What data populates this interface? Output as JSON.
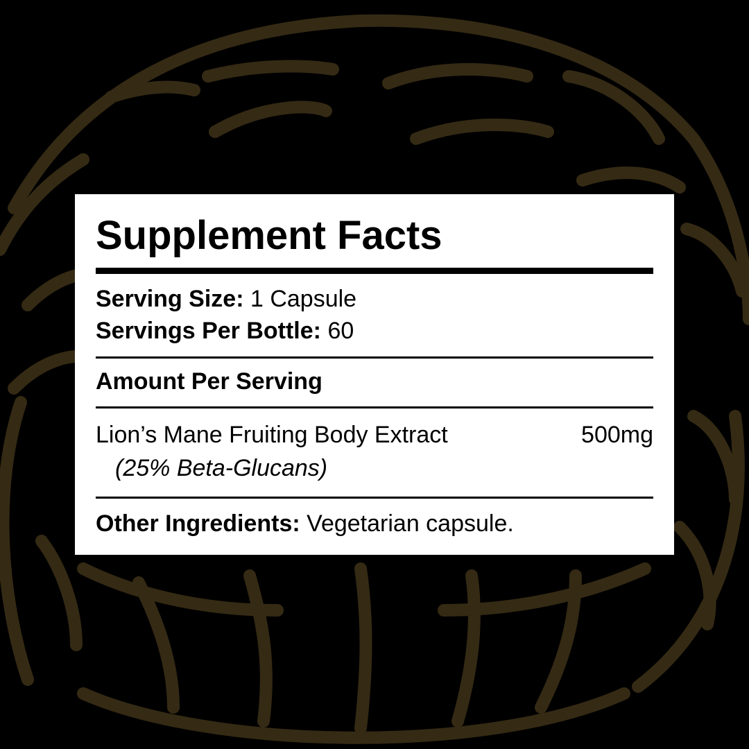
{
  "colors": {
    "background": "#000000",
    "illustration": "#352a14",
    "panel": "#ffffff"
  },
  "illustration": "lions-mane-mushroom-line-art",
  "label": {
    "title": "Supplement Facts",
    "serving_size_label": "Serving Size:",
    "serving_size_value": "1 Capsule",
    "servings_per_bottle_label": "Servings Per Bottle:",
    "servings_per_bottle_value": "60",
    "amount_per_serving": "Amount Per Serving",
    "ingredients": [
      {
        "name": "Lion’s Mane Fruiting Body Extract",
        "amount": "500mg",
        "note": "(25% Beta-Glucans)"
      }
    ],
    "other_ingredients_label": "Other Ingredients:",
    "other_ingredients_value": "Vegetarian capsule."
  }
}
